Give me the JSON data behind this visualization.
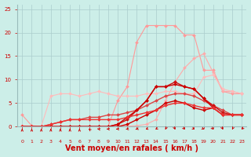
{
  "background_color": "#cceee8",
  "grid_color": "#aacccc",
  "xlabel": "Vent moyen/en rafales ( km/h )",
  "xlabel_color": "#cc0000",
  "xlabel_fontsize": 7,
  "tick_color": "#cc0000",
  "xlim": [
    -0.5,
    23.5
  ],
  "ylim": [
    0,
    26
  ],
  "xticks": [
    0,
    1,
    2,
    3,
    4,
    5,
    6,
    7,
    8,
    9,
    10,
    11,
    12,
    13,
    14,
    15,
    16,
    17,
    18,
    19,
    20,
    21,
    22,
    23
  ],
  "yticks": [
    0,
    5,
    10,
    15,
    20,
    25
  ],
  "series": [
    {
      "color": "#ff9999",
      "linewidth": 0.8,
      "markersize": 2.0,
      "y": [
        2.5,
        0.2,
        0.1,
        0.1,
        0.1,
        0.1,
        0.1,
        0.1,
        0.1,
        0.1,
        5.5,
        8.5,
        18.0,
        21.5,
        21.5,
        21.5,
        21.5,
        19.5,
        19.5,
        12.0,
        12.0,
        7.5,
        7.0,
        7.0
      ]
    },
    {
      "color": "#ffaaaa",
      "linewidth": 0.8,
      "markersize": 2.0,
      "y": [
        0.2,
        0.1,
        0.1,
        0.1,
        0.1,
        0.1,
        0.1,
        0.1,
        0.1,
        0.1,
        0.1,
        0.1,
        0.2,
        0.5,
        1.5,
        5.5,
        9.5,
        12.5,
        14.5,
        15.5,
        11.5,
        7.5,
        7.5,
        7.0
      ]
    },
    {
      "color": "#ffbbbb",
      "linewidth": 0.8,
      "markersize": 2.0,
      "y": [
        0.1,
        0.1,
        0.1,
        6.5,
        7.0,
        7.0,
        6.5,
        7.0,
        7.5,
        7.0,
        6.5,
        6.5,
        6.5,
        7.0,
        7.0,
        7.5,
        7.5,
        7.0,
        7.0,
        10.5,
        11.0,
        8.0,
        7.5,
        7.0
      ]
    },
    {
      "color": "#dd4444",
      "linewidth": 1.0,
      "markersize": 2.0,
      "y": [
        0.0,
        0.0,
        0.0,
        0.5,
        1.0,
        1.5,
        1.5,
        2.0,
        2.0,
        2.5,
        2.5,
        3.0,
        3.5,
        4.5,
        5.5,
        6.5,
        7.0,
        7.0,
        6.5,
        5.5,
        4.5,
        3.5,
        2.5,
        2.5
      ]
    },
    {
      "color": "#cc1111",
      "linewidth": 1.0,
      "markersize": 2.0,
      "y": [
        0.0,
        0.0,
        0.0,
        0.0,
        0.0,
        0.0,
        0.0,
        0.0,
        0.0,
        0.0,
        0.5,
        1.5,
        3.5,
        5.5,
        8.5,
        8.5,
        9.5,
        8.5,
        8.0,
        6.0,
        4.5,
        3.0,
        2.5,
        2.5
      ]
    },
    {
      "color": "#cc0000",
      "linewidth": 1.0,
      "markersize": 2.0,
      "y": [
        0.0,
        0.0,
        0.0,
        0.0,
        0.0,
        0.0,
        0.0,
        0.0,
        0.0,
        0.0,
        0.5,
        2.0,
        3.5,
        5.5,
        8.5,
        8.5,
        9.0,
        8.5,
        8.0,
        6.0,
        4.0,
        2.5,
        2.5,
        2.5
      ]
    },
    {
      "color": "#cc0000",
      "linewidth": 1.0,
      "markersize": 2.0,
      "y": [
        0.0,
        0.0,
        0.0,
        0.0,
        0.0,
        0.0,
        0.0,
        0.0,
        0.0,
        0.0,
        0.0,
        0.5,
        1.5,
        2.5,
        3.5,
        5.0,
        5.5,
        5.0,
        4.0,
        3.5,
        4.0,
        2.5,
        2.5,
        2.5
      ]
    },
    {
      "color": "#ee3333",
      "linewidth": 1.0,
      "markersize": 2.0,
      "y": [
        0.0,
        0.0,
        0.0,
        0.5,
        1.0,
        1.5,
        1.5,
        1.5,
        1.5,
        1.5,
        1.5,
        2.0,
        2.5,
        3.0,
        3.5,
        4.5,
        5.0,
        5.0,
        4.5,
        4.0,
        4.0,
        2.5,
        2.5,
        2.5
      ]
    }
  ],
  "wind_arrow_angles": [
    180,
    180,
    180,
    180,
    180,
    180,
    180,
    200,
    230,
    250,
    270,
    290,
    310,
    320,
    330,
    350,
    10,
    20,
    30,
    30,
    20,
    10,
    350,
    340
  ],
  "wind_arrows_color": "#cc0000"
}
